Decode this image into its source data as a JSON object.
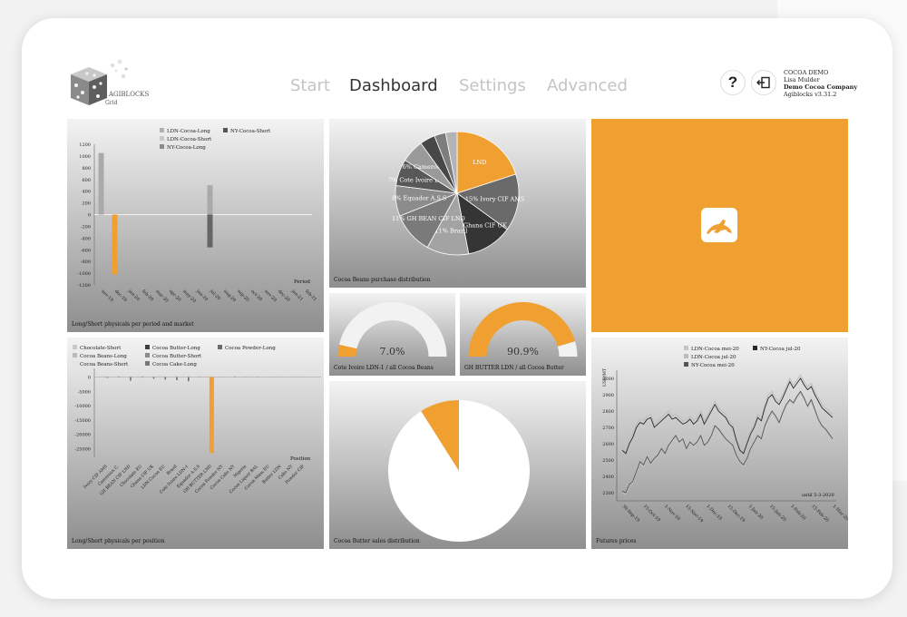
{
  "header": {
    "logo_text": "AGIBLOCKS",
    "logo_sub": "Grid",
    "nav": [
      {
        "label": "Start"
      },
      {
        "label": "Dashboard"
      },
      {
        "label": "Settings"
      },
      {
        "label": "Advanced"
      }
    ],
    "active_tab": "Dashboard",
    "help_symbol": "?",
    "user": {
      "app": "COCOA DEMO",
      "name": "Lisa Mulder",
      "company": "Demo Cocoa Company",
      "version": "Agiblocks v3.31.2"
    }
  },
  "colors": {
    "accent": "#f0a030",
    "frame": "#ffffff",
    "page_bg": "#f2f2f2"
  },
  "tiles": {
    "longshort_period": {
      "title": "Long/Short physicals per period and market"
    },
    "pie_purchase": {
      "title": "Cocoa Beans purchase distribution"
    },
    "brand": {
      "icon": "hare-logo-icon"
    },
    "gauge_left": {
      "value_text": "7.0%",
      "title": "Cote Ivoire LDN-1 / all Cocoa Beans"
    },
    "gauge_right": {
      "value_text": "90.9%",
      "title": "GH BUTTER LDN / all Cocoa Butter"
    },
    "longshort_position": {
      "title": "Long/Short physicals per position"
    },
    "pie_butter": {
      "title": "Cocoa Butter sales distribution"
    },
    "futures": {
      "title": "Futures prices",
      "note": "until 5-3-2020"
    }
  },
  "chart_data": [
    {
      "type": "bar",
      "title": "Long/Short physicals per period and market",
      "legend": [
        "LDN-Cocoa-Long",
        "NY-Cocoa-Short",
        "LDN-Cocoa-Short",
        "NY-Cocoa-Long"
      ],
      "xlabel": "Period",
      "categories": [
        "nov-19",
        "dec-19",
        "jan-20",
        "feb-20",
        "mar-20",
        "apr-20",
        "may-20",
        "jun-20",
        "jul-20",
        "aug-20",
        "sep-20",
        "oct-20",
        "nov-20",
        "dec-20",
        "jan-21",
        "feb-21"
      ],
      "series": [
        {
          "name": "LDN-Cocoa-Long",
          "values": [
            1050,
            0,
            0,
            0,
            0,
            0,
            0,
            0,
            500,
            0,
            0,
            0,
            0,
            0,
            0,
            0
          ]
        },
        {
          "name": "NY-Cocoa-Short",
          "values": [
            0,
            0,
            0,
            0,
            0,
            0,
            0,
            0,
            -300,
            0,
            0,
            0,
            0,
            0,
            0,
            0
          ]
        },
        {
          "name": "LDN-Cocoa-Short",
          "values": [
            0,
            -1020,
            0,
            0,
            0,
            0,
            0,
            0,
            -560,
            0,
            0,
            0,
            0,
            0,
            0,
            0
          ]
        },
        {
          "name": "NY-Cocoa-Long",
          "values": [
            0,
            0,
            0,
            0,
            0,
            0,
            0,
            0,
            0,
            0,
            0,
            0,
            0,
            0,
            0,
            0
          ]
        }
      ],
      "y_ticks": [
        "1200",
        "1000",
        "800",
        "600",
        "400",
        "200",
        "0",
        "-200",
        "-400",
        "-600",
        "-800",
        "-1000",
        "-1200"
      ],
      "ylim": [
        -1200,
        1200
      ],
      "grid": false
    },
    {
      "type": "pie",
      "title": "Cocoa Beans purchase distribution",
      "slices": [
        {
          "label": "LND",
          "value": 20
        },
        {
          "label": "15% Ivory CIF AMS",
          "value": 15
        },
        {
          "label": "12% Ghana CIF UK",
          "value": 12
        },
        {
          "label": "11% Brazil",
          "value": 11
        },
        {
          "label": "11% GH BEAN CIF LND",
          "value": 11
        },
        {
          "label": "8% Equador A.S.S",
          "value": 8
        },
        {
          "label": "7% Cote Ivoire LDN-1",
          "value": 7
        },
        {
          "label": "6% Cameroon C...",
          "value": 6
        },
        {
          "label": "",
          "value": 4
        },
        {
          "label": "",
          "value": 3
        },
        {
          "label": "",
          "value": 3
        }
      ],
      "slice_colors": [
        "#f0a030",
        "#6a6a6a",
        "#353535",
        "#a3a3a3",
        "#7a7a7a",
        "#8c8c8c",
        "#585858",
        "#9a9a9a",
        "#474747",
        "#7d7d7d",
        "#b4b4b4"
      ]
    },
    {
      "type": "pie",
      "title": "Cote Ivoire LDN-1 / all Cocoa Beans",
      "gauge": true,
      "value_percent": 7.0
    },
    {
      "type": "pie",
      "title": "GH BUTTER LDN / all Cocoa Butter",
      "gauge": true,
      "value_percent": 90.9
    },
    {
      "type": "bar",
      "title": "Long/Short physicals per position",
      "legend": [
        "Chocolate-Short",
        "Cocoa Butter-Long",
        "Cocoa Powder-Long",
        "Cocoa Beans-Long",
        "Cocoa Butter-Short",
        "Cocoa Beans-Short",
        "Cocoa Cake-Long"
      ],
      "xlabel": "Position",
      "categories": [
        "Ivory CIF AMS",
        "Cameroon C.",
        "GH BEAN CIF LND",
        "Chocolate EU",
        "Ghana CIF UK",
        "LDN Cocoa EU",
        "Brazil",
        "Cote Ivoire LDN-1",
        "Equador A.S.S",
        "GH BUTTER LND",
        "Cocoa Powder NY",
        "Cocoa Cake NY",
        "Nigeria",
        "Cocoa Liquor BAL",
        "Cocoa Mass EU",
        "Butter LDN",
        "Cake NY",
        "Powder CIF"
      ],
      "values": [
        -300,
        -150,
        -1300,
        -200,
        -600,
        -900,
        -1100,
        -1500,
        -100,
        -26500,
        -50,
        -120,
        -70,
        -80,
        -40,
        -30,
        -20,
        -10
      ],
      "y_ticks": [
        "0",
        "-5000",
        "-10000",
        "-15000",
        "-20000",
        "-25000"
      ],
      "ylim": [
        -28000,
        3000
      ],
      "grid": false
    },
    {
      "type": "pie",
      "title": "Cocoa Butter sales distribution",
      "slices": [
        {
          "label": "",
          "value": 91
        },
        {
          "label": "",
          "value": 9
        }
      ],
      "slice_colors": [
        "#ffffff",
        "#f0a030"
      ]
    },
    {
      "type": "line",
      "title": "Futures prices",
      "legend": [
        "LDN-Cocoa mei-20",
        "NY-Cocoa jul-20",
        "LDN-Cocoa jul-20",
        "NY-Cocoa mei-20"
      ],
      "ylabel": "USD/MT",
      "x_ticks": [
        "30-Sep-19",
        "15-Oct-19",
        "1-Nov-19",
        "15-Nov-19",
        "1-Dec-19",
        "15-Dec-19",
        "1-Jan-20",
        "15-Jan-20",
        "1-Feb-20",
        "15-Feb-20",
        "1-Mar-20"
      ],
      "y_ticks": [
        "2300",
        "2400",
        "2500",
        "2600",
        "2700",
        "2800",
        "2900",
        "3000"
      ],
      "ylim": [
        2250,
        3050
      ],
      "series": [
        {
          "name": "NY-Cocoa jul-20",
          "values": [
            2300,
            2290,
            2340,
            2360,
            2420,
            2480,
            2460,
            2510,
            2470,
            2500,
            2520,
            2560,
            2530,
            2580,
            2610,
            2640,
            2600,
            2620,
            2560,
            2600,
            2580,
            2600,
            2640,
            2580,
            2600,
            2640,
            2700,
            2680,
            2650,
            2620,
            2600,
            2580,
            2520,
            2480,
            2460,
            2500,
            2560,
            2600,
            2640,
            2620,
            2700,
            2750,
            2790,
            2760,
            2720,
            2780,
            2830,
            2860,
            2840,
            2880,
            2910,
            2870,
            2820,
            2860,
            2800,
            2740,
            2700,
            2680,
            2650,
            2620
          ]
        },
        {
          "name": "LDN-Cocoa mei-20",
          "values": [
            2560,
            2540,
            2600,
            2640,
            2700,
            2730,
            2720,
            2750,
            2760,
            2700,
            2720,
            2740,
            2760,
            2780,
            2750,
            2760,
            2740,
            2720,
            2730,
            2750,
            2720,
            2740,
            2780,
            2720,
            2760,
            2800,
            2840,
            2800,
            2780,
            2760,
            2720,
            2700,
            2620,
            2560,
            2540,
            2600,
            2660,
            2700,
            2760,
            2740,
            2820,
            2880,
            2900,
            2860,
            2840,
            2880,
            2930,
            2980,
            2940,
            2970,
            3000,
            2960,
            2930,
            2950,
            2900,
            2860,
            2820,
            2800,
            2780,
            2760
          ]
        },
        {
          "name": "LDN-Cocoa jul-20",
          "values": [
            2580,
            2560,
            2620,
            2660,
            2720,
            2750,
            2740,
            2770,
            2780,
            2720,
            2740,
            2760,
            2780,
            2800,
            2770,
            2780,
            2760,
            2740,
            2750,
            2770,
            2740,
            2760,
            2800,
            2740,
            2780,
            2820,
            2860,
            2820,
            2800,
            2780,
            2740,
            2720,
            2640,
            2580,
            2560,
            2620,
            2680,
            2720,
            2780,
            2760,
            2840,
            2900,
            2920,
            2880,
            2860,
            2900,
            2950,
            3000,
            2960,
            2990,
            3020,
            2980,
            2950,
            2970,
            2920,
            2880,
            2840,
            2820,
            2800,
            2780
          ]
        },
        {
          "name": "NY-Cocoa mei-20",
          "values": [
            2310,
            2300,
            2350,
            2370,
            2430,
            2490,
            2470,
            2520,
            2480,
            2510,
            2530,
            2570,
            2540,
            2590,
            2620,
            2650,
            2610,
            2630,
            2570,
            2610,
            2590,
            2610,
            2650,
            2590,
            2610,
            2650,
            2710,
            2690,
            2660,
            2630,
            2610,
            2590,
            2530,
            2490,
            2470,
            2510,
            2570,
            2610,
            2650,
            2630,
            2710,
            2760,
            2800,
            2770,
            2730,
            2790,
            2840,
            2870,
            2850,
            2890,
            2920,
            2880,
            2830,
            2870,
            2810,
            2750,
            2710,
            2690,
            2660,
            2630
          ]
        }
      ],
      "series_colors": [
        "#c4c4c4",
        "#2a2a2a",
        "#bbbbbb",
        "#555555"
      ],
      "grid": false
    }
  ]
}
